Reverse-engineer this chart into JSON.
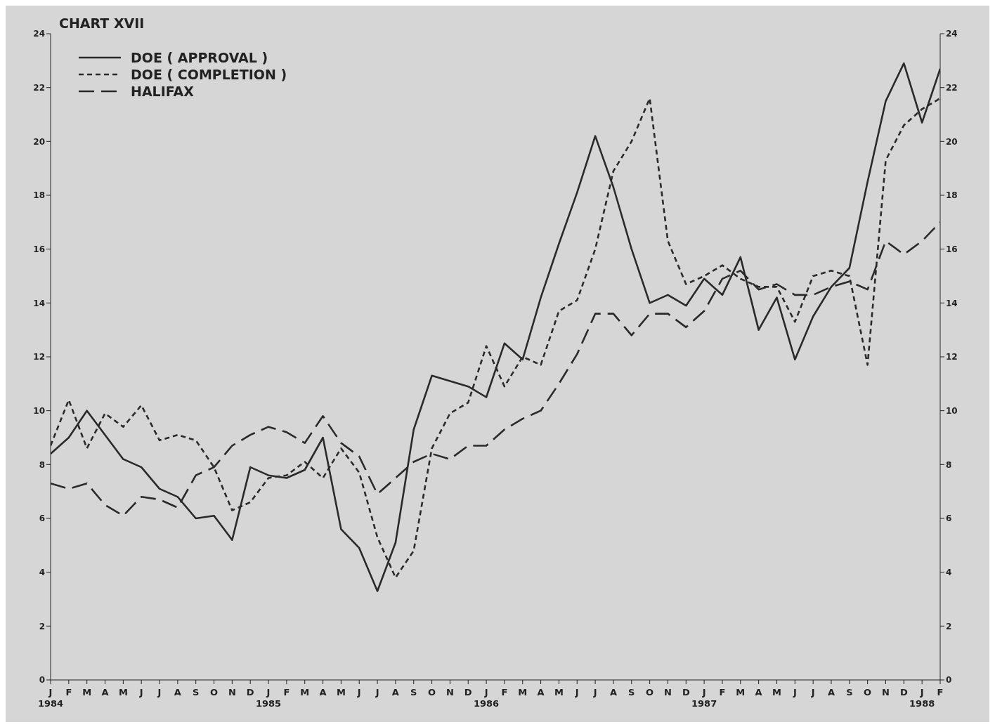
{
  "chart_data": {
    "type": "line",
    "title": "CHART XVII",
    "categories": [
      "J\n1984",
      "F",
      "M",
      "A",
      "M",
      "J",
      "J",
      "A",
      "S",
      "O",
      "N",
      "D",
      "J\n1985",
      "F",
      "M",
      "A",
      "M",
      "J",
      "J",
      "A",
      "S",
      "O",
      "N",
      "D",
      "J\n1986",
      "F",
      "M",
      "A",
      "M",
      "J",
      "J",
      "A",
      "S",
      "O",
      "N",
      "D",
      "J\n1987",
      "F",
      "M",
      "A",
      "M",
      "J",
      "J",
      "A",
      "S",
      "O",
      "N",
      "D",
      "J\n1988",
      "F"
    ],
    "series": [
      {
        "name": "DOE ( APPROVAL )",
        "color": "#2a2a2a",
        "line_style": "solid",
        "values": [
          8.4,
          9.0,
          10.0,
          9.1,
          8.2,
          7.9,
          7.1,
          6.8,
          6.0,
          6.1,
          5.2,
          7.9,
          7.6,
          7.5,
          7.8,
          9.0,
          5.6,
          4.9,
          3.3,
          5.1,
          9.3,
          11.3,
          11.1,
          10.9,
          10.5,
          12.5,
          11.9,
          14.2,
          16.2,
          18.1,
          20.2,
          18.3,
          16.0,
          14.0,
          14.3,
          13.9,
          14.9,
          14.3,
          15.7,
          13.0,
          14.2,
          11.9,
          13.5,
          14.6,
          15.3,
          18.5,
          21.5,
          22.9,
          20.7,
          22.7
        ]
      },
      {
        "name": "DOE ( COMPLETION )",
        "color": "#2a2a2a",
        "line_style": "dotted",
        "values": [
          8.7,
          10.4,
          8.6,
          9.9,
          9.4,
          10.2,
          8.9,
          9.1,
          8.9,
          7.9,
          6.3,
          6.6,
          7.5,
          7.6,
          8.1,
          7.5,
          8.6,
          7.7,
          5.3,
          3.8,
          4.8,
          8.6,
          9.9,
          10.3,
          12.4,
          10.9,
          12.0,
          11.7,
          13.7,
          14.1,
          16.0,
          18.9,
          20.0,
          21.6,
          16.3,
          14.7,
          15.0,
          15.4,
          14.9,
          14.6,
          14.6,
          13.3,
          15.0,
          15.2,
          15.0,
          11.7,
          19.3,
          20.6,
          21.2,
          21.6
        ]
      },
      {
        "name": "HALIFAX",
        "color": "#2a2a2a",
        "line_style": "dashed",
        "values": [
          7.3,
          7.1,
          7.3,
          6.5,
          6.1,
          6.8,
          6.7,
          6.4,
          7.6,
          7.9,
          8.7,
          9.1,
          9.4,
          9.2,
          8.8,
          9.8,
          8.8,
          8.3,
          6.9,
          7.5,
          8.1,
          8.4,
          8.2,
          8.7,
          8.7,
          9.3,
          9.7,
          10.0,
          11.0,
          12.1,
          13.6,
          13.6,
          12.8,
          13.6,
          13.6,
          13.1,
          13.7,
          14.9,
          15.2,
          14.5,
          14.7,
          14.3,
          14.3,
          14.6,
          14.8,
          14.5,
          16.3,
          15.8,
          16.3,
          17.0
        ]
      }
    ],
    "ylim": [
      0,
      24
    ],
    "yticks": [
      0,
      2,
      4,
      6,
      8,
      10,
      12,
      14,
      16,
      18,
      20,
      22,
      24
    ],
    "y2lim": [
      0,
      24
    ],
    "y2ticks": [
      0,
      2,
      4,
      6,
      8,
      10,
      12,
      14,
      16,
      18,
      20,
      22,
      24
    ],
    "legend": "top left",
    "grid": false,
    "marker": "none"
  }
}
